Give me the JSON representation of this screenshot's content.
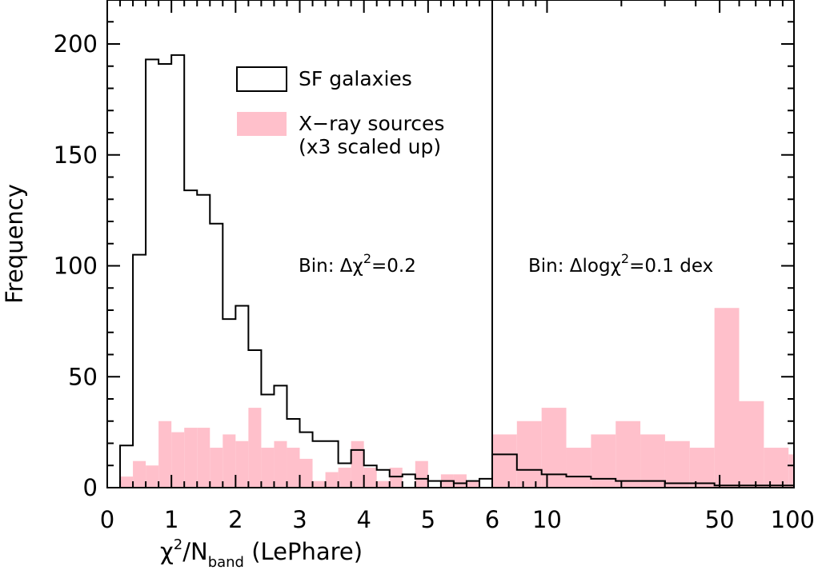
{
  "chart_data": {
    "type": "histogram",
    "ylabel": "Frequency",
    "xlabel": {
      "prefix": "χ",
      "sup": "2",
      "slash": "/N",
      "sub": "band",
      "suffix": " (LePhare)"
    },
    "ylim": [
      0,
      220
    ],
    "yticks": [
      0,
      50,
      100,
      150,
      200
    ],
    "left_panel": {
      "xlim": [
        0,
        6
      ],
      "xticks": [
        0,
        1,
        2,
        3,
        4,
        5,
        6
      ],
      "bin_width": 0.2,
      "bin_note": {
        "prefix": "Bin: Δχ",
        "sup": "2",
        "suffix": "=0.2"
      },
      "bin_edges_start": 0.2,
      "series": [
        {
          "name": "SF galaxies",
          "style": "step",
          "values": [
            19,
            105,
            193,
            191,
            195,
            134,
            132,
            119,
            76,
            82,
            62,
            42,
            46,
            31,
            25,
            21,
            21,
            11,
            17,
            10,
            8,
            5,
            6,
            4,
            3,
            3,
            2,
            3,
            4
          ]
        },
        {
          "name": "X-ray sources (x3 scaled up)",
          "style": "filled",
          "values": [
            5,
            12,
            10,
            30,
            25,
            27,
            27,
            18,
            24,
            21,
            36,
            18,
            21,
            18,
            13,
            3,
            7,
            9,
            21,
            9,
            3,
            9,
            0,
            12,
            0,
            6,
            6,
            3,
            0
          ]
        }
      ]
    },
    "right_panel": {
      "scale": "log",
      "xlim": [
        6,
        100
      ],
      "xticks": [
        10,
        50,
        100
      ],
      "extra_tick_label": "6",
      "bin_width_dex": 0.1,
      "bin_note": {
        "prefix": "Bin: Δlogχ",
        "sup": "2",
        "suffix": "=0.1 dex"
      },
      "bin_edges_log": [
        0.778,
        0.878,
        0.978,
        1.078,
        1.178,
        1.278,
        1.378,
        1.478,
        1.578,
        1.678,
        1.778,
        1.878,
        1.978,
        2.0
      ],
      "series": [
        {
          "name": "SF galaxies",
          "style": "step",
          "values": [
            15,
            8,
            6,
            5,
            4,
            3,
            3,
            2,
            2,
            1,
            1,
            1,
            1
          ]
        },
        {
          "name": "X-ray sources (x3 scaled up)",
          "style": "filled",
          "values": [
            24,
            30,
            36,
            18,
            24,
            30,
            24,
            21,
            18,
            81,
            39,
            18,
            15
          ]
        }
      ]
    },
    "legend": {
      "position": "top-center-left",
      "entries": [
        {
          "label": "SF galaxies",
          "style": "outline"
        },
        {
          "label_line1": "X−ray sources",
          "label_line2": "(x3 scaled up)",
          "style": "filled"
        }
      ]
    },
    "colors": {
      "filled": "#ffc0cb",
      "line": "#000000"
    }
  }
}
